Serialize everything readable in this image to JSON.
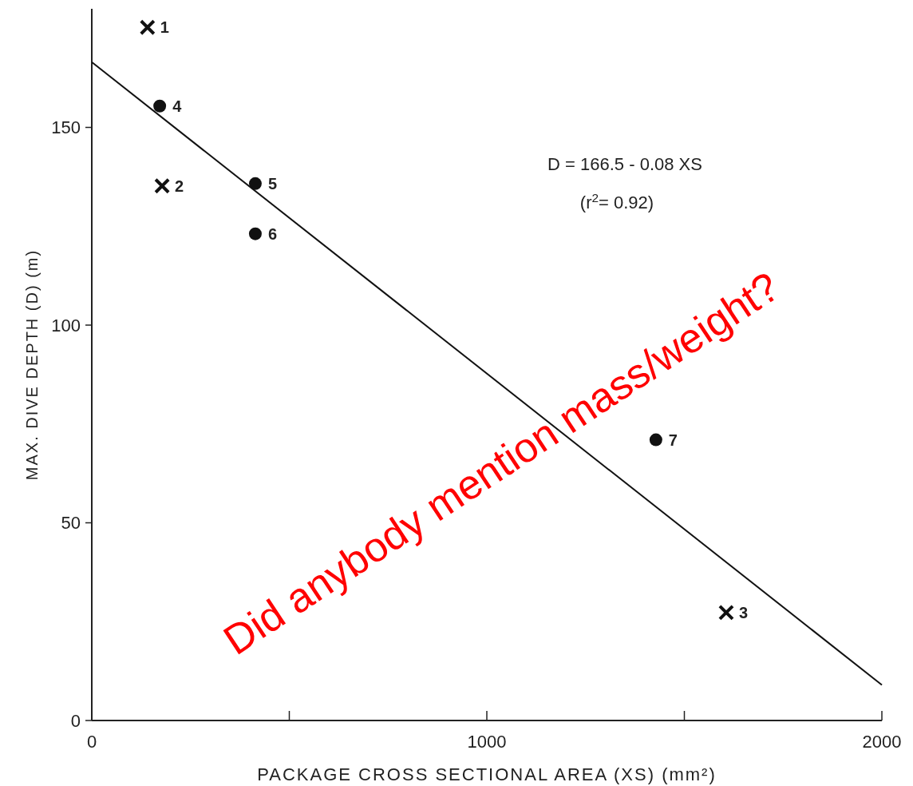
{
  "chart_data": {
    "type": "scatter",
    "xlabel": "PACKAGE CROSS SECTIONAL AREA (XS) (mm²)",
    "ylabel": "MAX. DIVE DEPTH (D) (m)",
    "xlim": [
      0,
      2000
    ],
    "ylim": [
      0,
      180
    ],
    "xticks": [
      0,
      {
        "value": 500,
        "label": null
      },
      1000,
      {
        "value": 1500,
        "label": null
      },
      2000
    ],
    "yticks": [
      0,
      50,
      100,
      150
    ],
    "series": [
      {
        "marker": "cross",
        "color": "#111111",
        "x": [
          141,
          178,
          1606
        ],
        "values": [
          175.3,
          135.2,
          27.3
        ]
      },
      {
        "marker": "circle",
        "color": "#111111",
        "x": [
          172,
          414,
          414,
          1428
        ],
        "values": [
          155.4,
          135.8,
          123.1,
          71
        ]
      },
      {
        "type": "line",
        "color": "#111111",
        "x": [
          0,
          2000
        ],
        "values": [
          166.5,
          9
        ]
      }
    ],
    "annotations": [
      {
        "text": "1",
        "x": 141,
        "y": 175.3
      },
      {
        "text": "2",
        "x": 178,
        "y": 135.2
      },
      {
        "text": "3",
        "x": 1606,
        "y": 27.3
      },
      {
        "text": "4",
        "x": 172,
        "y": 155.4
      },
      {
        "text": "5",
        "x": 414,
        "y": 135.8
      },
      {
        "text": "6",
        "x": 414,
        "y": 123.1
      },
      {
        "text": "7",
        "x": 1428,
        "y": 71
      },
      "D = 166.5 - 0.08 XS",
      "(r$^{2}$= 0.92)",
      "Did anybody mention mass/weight?"
    ]
  }
}
